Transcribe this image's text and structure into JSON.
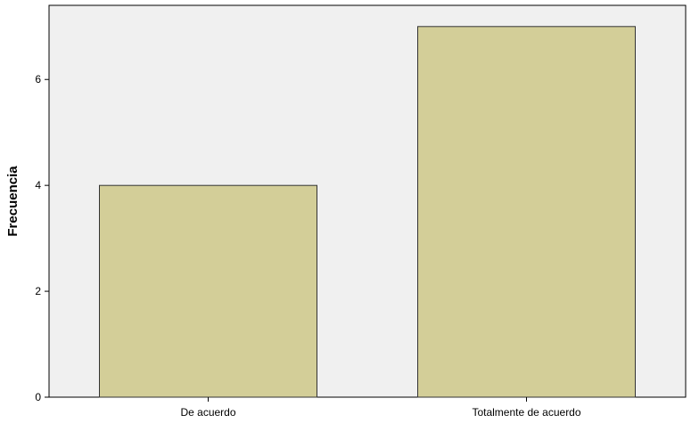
{
  "chart_data": {
    "type": "bar",
    "categories": [
      "De acuerdo",
      "Totalmente de acuerdo"
    ],
    "values": [
      4,
      7
    ],
    "title": "",
    "xlabel": "",
    "ylabel": "Frecuencia",
    "ylim": [
      0,
      7.4
    ],
    "yticks": [
      0,
      2,
      4,
      6
    ],
    "grid": false,
    "legend": "none",
    "colors": {
      "plot_background": "#f0f0f0",
      "bar_fill": "#d3ce98",
      "bar_stroke": "#333333",
      "axis": "#000000"
    }
  }
}
